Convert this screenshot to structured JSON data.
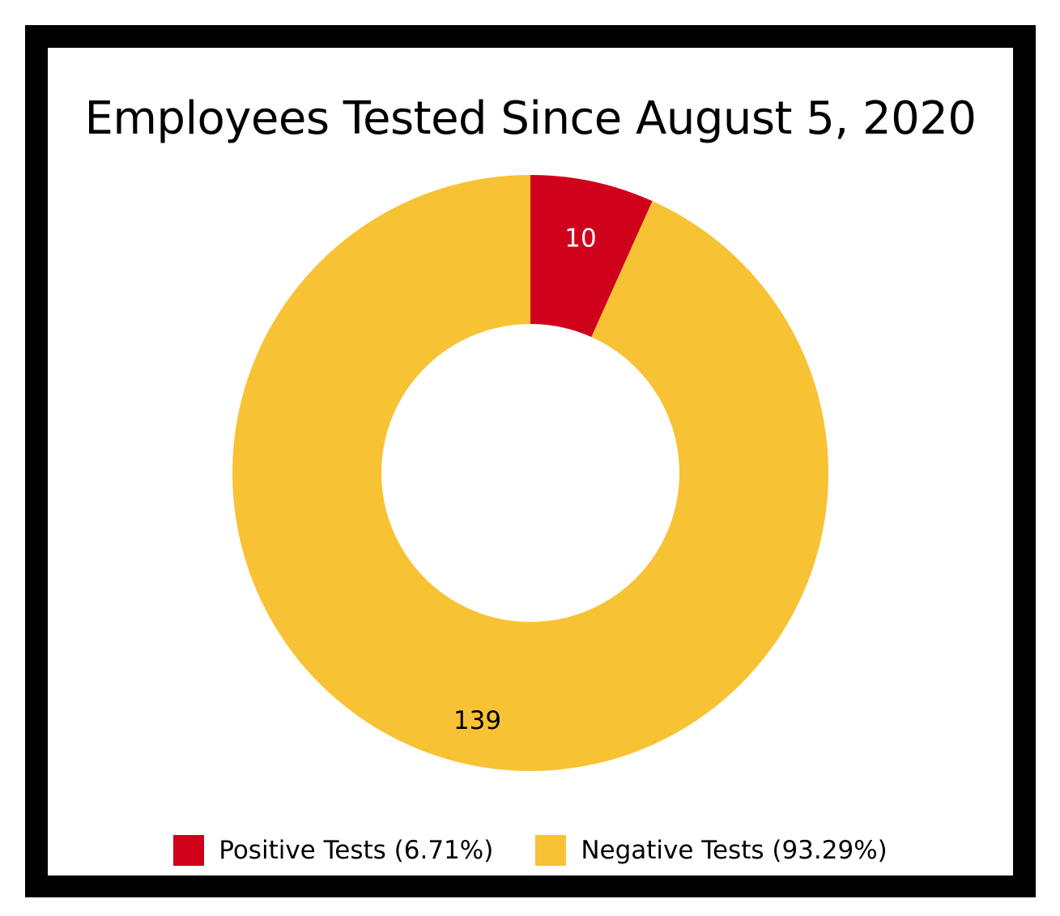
{
  "chart_data": {
    "type": "pie",
    "variant": "donut",
    "title": "Employees Tested Since August 5, 2020",
    "series": [
      {
        "name": "Positive Tests (6.71%)",
        "value": 10,
        "label": "10",
        "color": "#D0021B",
        "label_color": "#FFFFFF"
      },
      {
        "name": "Negative Tests (93.29%)",
        "value": 139,
        "label": "139",
        "color": "#F8C235",
        "label_color": "#000000"
      }
    ],
    "legend_placement": "bottom"
  }
}
